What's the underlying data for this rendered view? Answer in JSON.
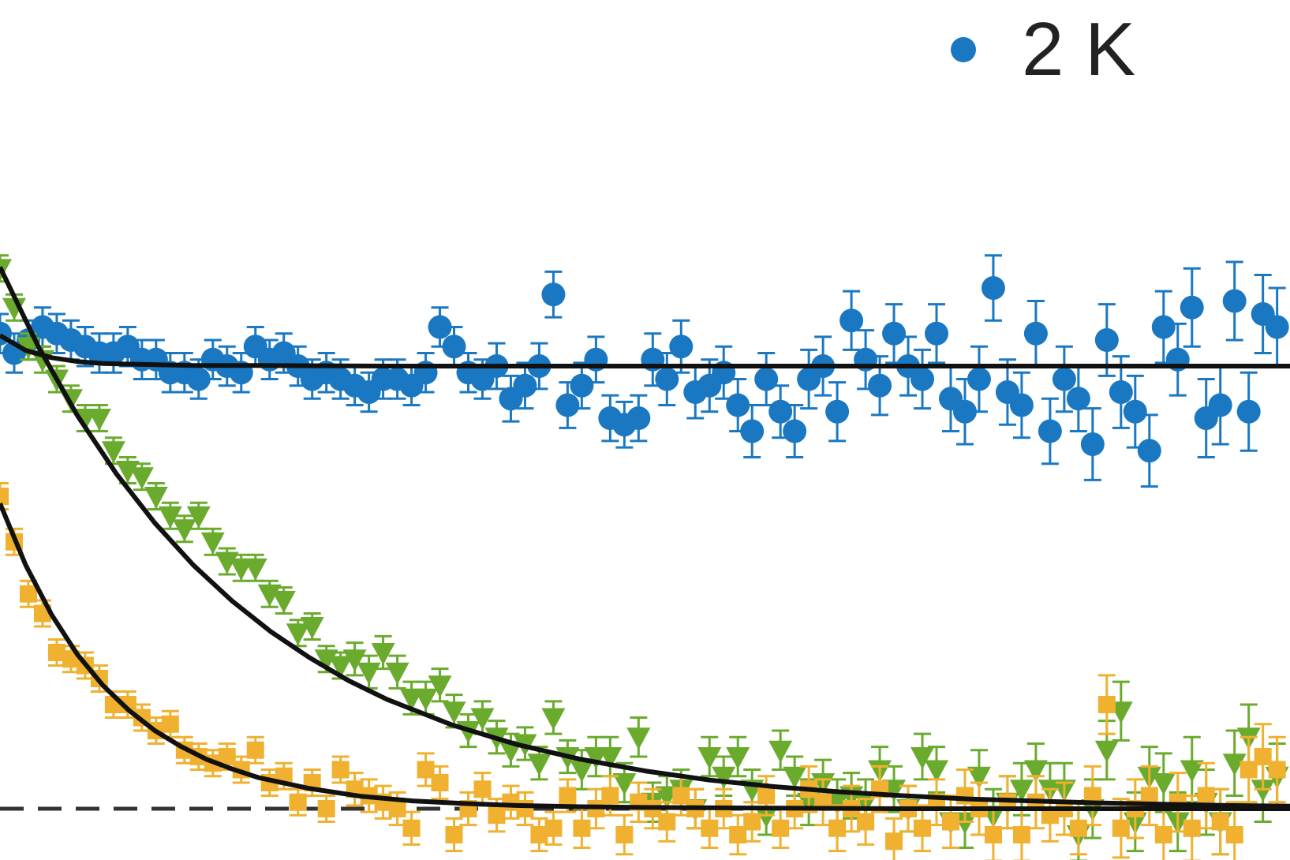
{
  "chart_data": {
    "type": "scatter",
    "title": "",
    "xlabel": "",
    "ylabel": "",
    "grid": false,
    "legend_position": "top-right",
    "xlim": [
      0,
      1
    ],
    "ylim": [
      0,
      1
    ],
    "baseline_dashed": 0,
    "series": [
      {
        "name": "2 K",
        "marker": "circle",
        "color": "#1a78c2",
        "x": [
          0.0,
          0.011,
          0.022,
          0.033,
          0.044,
          0.055,
          0.066,
          0.077,
          0.088,
          0.099,
          0.11,
          0.121,
          0.132,
          0.143,
          0.154,
          0.165,
          0.176,
          0.187,
          0.198,
          0.209,
          0.22,
          0.231,
          0.242,
          0.253,
          0.264,
          0.275,
          0.286,
          0.297,
          0.308,
          0.319,
          0.33,
          0.341,
          0.352,
          0.363,
          0.374,
          0.385,
          0.396,
          0.407,
          0.418,
          0.429,
          0.44,
          0.451,
          0.462,
          0.473,
          0.484,
          0.495,
          0.506,
          0.517,
          0.528,
          0.539,
          0.55,
          0.561,
          0.572,
          0.583,
          0.594,
          0.605,
          0.616,
          0.627,
          0.638,
          0.649,
          0.66,
          0.671,
          0.682,
          0.693,
          0.704,
          0.715,
          0.726,
          0.737,
          0.748,
          0.759,
          0.77,
          0.781,
          0.792,
          0.803,
          0.814,
          0.825,
          0.836,
          0.847,
          0.858,
          0.869,
          0.88,
          0.891,
          0.902,
          0.913,
          0.924,
          0.935,
          0.946,
          0.957,
          0.968,
          0.979,
          0.99
        ],
        "y": [
          0.73,
          0.7,
          0.72,
          0.74,
          0.73,
          0.72,
          0.71,
          0.7,
          0.7,
          0.71,
          0.69,
          0.69,
          0.67,
          0.67,
          0.66,
          0.69,
          0.68,
          0.67,
          0.71,
          0.69,
          0.7,
          0.68,
          0.66,
          0.67,
          0.66,
          0.65,
          0.64,
          0.66,
          0.66,
          0.65,
          0.67,
          0.74,
          0.71,
          0.67,
          0.66,
          0.68,
          0.63,
          0.65,
          0.68,
          0.79,
          0.62,
          0.65,
          0.69,
          0.6,
          0.59,
          0.6,
          0.69,
          0.66,
          0.71,
          0.64,
          0.65,
          0.67,
          0.62,
          0.58,
          0.66,
          0.61,
          0.58,
          0.66,
          0.68,
          0.61,
          0.75,
          0.69,
          0.65,
          0.73,
          0.68,
          0.66,
          0.73,
          0.63,
          0.61,
          0.66,
          0.8,
          0.64,
          0.62,
          0.73,
          0.58,
          0.66,
          0.63,
          0.56,
          0.72,
          0.64,
          0.61,
          0.55,
          0.74,
          0.69,
          0.77,
          0.6,
          0.62,
          0.78,
          0.61,
          0.76,
          0.74
        ],
        "yerr": [
          0.03,
          0.03,
          0.03,
          0.03,
          0.03,
          0.03,
          0.03,
          0.03,
          0.03,
          0.03,
          0.03,
          0.03,
          0.03,
          0.03,
          0.03,
          0.03,
          0.03,
          0.03,
          0.03,
          0.03,
          0.03,
          0.03,
          0.03,
          0.03,
          0.03,
          0.03,
          0.03,
          0.03,
          0.03,
          0.03,
          0.03,
          0.03,
          0.03,
          0.03,
          0.03,
          0.035,
          0.035,
          0.035,
          0.035,
          0.035,
          0.035,
          0.035,
          0.035,
          0.035,
          0.035,
          0.035,
          0.04,
          0.04,
          0.04,
          0.04,
          0.04,
          0.04,
          0.04,
          0.04,
          0.04,
          0.04,
          0.04,
          0.045,
          0.045,
          0.045,
          0.045,
          0.045,
          0.045,
          0.045,
          0.045,
          0.045,
          0.045,
          0.05,
          0.05,
          0.05,
          0.05,
          0.05,
          0.05,
          0.05,
          0.05,
          0.05,
          0.05,
          0.055,
          0.055,
          0.055,
          0.055,
          0.055,
          0.055,
          0.055,
          0.06,
          0.06,
          0.06,
          0.06,
          0.06,
          0.06,
          0.06
        ]
      },
      {
        "name": "",
        "marker": "triangle-down",
        "color": "#6aab2e",
        "x": [
          0.0,
          0.011,
          0.022,
          0.033,
          0.044,
          0.055,
          0.066,
          0.077,
          0.088,
          0.099,
          0.11,
          0.121,
          0.132,
          0.143,
          0.154,
          0.165,
          0.176,
          0.187,
          0.198,
          0.209,
          0.22,
          0.231,
          0.242,
          0.253,
          0.264,
          0.275,
          0.286,
          0.297,
          0.308,
          0.319,
          0.33,
          0.341,
          0.352,
          0.363,
          0.374,
          0.385,
          0.396,
          0.407,
          0.418,
          0.429,
          0.44,
          0.451,
          0.462,
          0.473,
          0.484,
          0.495,
          0.506,
          0.517,
          0.528,
          0.539,
          0.55,
          0.561,
          0.572,
          0.583,
          0.594,
          0.605,
          0.616,
          0.627,
          0.638,
          0.649,
          0.66,
          0.671,
          0.682,
          0.693,
          0.704,
          0.715,
          0.726,
          0.737,
          0.748,
          0.759,
          0.77,
          0.781,
          0.792,
          0.803,
          0.814,
          0.825,
          0.836,
          0.847,
          0.858,
          0.869,
          0.88,
          0.891,
          0.902,
          0.913,
          0.924,
          0.935,
          0.946,
          0.957,
          0.968,
          0.979,
          0.99
        ],
        "y": [
          0.83,
          0.77,
          0.71,
          0.69,
          0.66,
          0.63,
          0.6,
          0.6,
          0.55,
          0.52,
          0.51,
          0.48,
          0.45,
          0.43,
          0.45,
          0.41,
          0.38,
          0.37,
          0.37,
          0.33,
          0.32,
          0.27,
          0.28,
          0.23,
          0.22,
          0.23,
          0.21,
          0.24,
          0.21,
          0.17,
          0.17,
          0.19,
          0.15,
          0.12,
          0.14,
          0.11,
          0.09,
          0.1,
          0.07,
          0.14,
          0.08,
          0.06,
          0.08,
          0.08,
          0.04,
          0.11,
          0.01,
          0.02,
          0.03,
          0.0,
          0.08,
          0.05,
          0.08,
          0.03,
          -0.01,
          0.09,
          0.05,
          0.01,
          0.04,
          0.01,
          0.02,
          0.01,
          0.06,
          0.03,
          0.0,
          0.08,
          0.06,
          -0.02,
          -0.02,
          0.05,
          -0.01,
          0.01,
          0.03,
          0.06,
          0.03,
          0.03,
          -0.04,
          0.0,
          0.09,
          0.15,
          -0.02,
          0.05,
          0.04,
          -0.02,
          0.06,
          0.01,
          -0.02,
          0.07,
          0.11,
          0.03,
          0.05
        ],
        "yerr": [
          0.02,
          0.02,
          0.02,
          0.02,
          0.02,
          0.02,
          0.02,
          0.02,
          0.02,
          0.02,
          0.02,
          0.02,
          0.02,
          0.02,
          0.02,
          0.02,
          0.02,
          0.02,
          0.02,
          0.02,
          0.02,
          0.02,
          0.02,
          0.02,
          0.02,
          0.025,
          0.025,
          0.025,
          0.025,
          0.025,
          0.025,
          0.025,
          0.025,
          0.025,
          0.025,
          0.025,
          0.025,
          0.025,
          0.025,
          0.025,
          0.025,
          0.03,
          0.03,
          0.03,
          0.03,
          0.03,
          0.03,
          0.03,
          0.03,
          0.03,
          0.03,
          0.03,
          0.03,
          0.03,
          0.03,
          0.03,
          0.03,
          0.035,
          0.035,
          0.035,
          0.035,
          0.035,
          0.035,
          0.035,
          0.035,
          0.035,
          0.035,
          0.04,
          0.04,
          0.04,
          0.04,
          0.04,
          0.04,
          0.04,
          0.04,
          0.04,
          0.04,
          0.045,
          0.045,
          0.045,
          0.045,
          0.045,
          0.045,
          0.045,
          0.05,
          0.05,
          0.05,
          0.05,
          0.05,
          0.05,
          0.05
        ]
      },
      {
        "name": "",
        "marker": "square",
        "color": "#efb12f",
        "x": [
          0.0,
          0.011,
          0.022,
          0.033,
          0.044,
          0.055,
          0.066,
          0.077,
          0.088,
          0.099,
          0.11,
          0.121,
          0.132,
          0.143,
          0.154,
          0.165,
          0.176,
          0.187,
          0.198,
          0.209,
          0.22,
          0.231,
          0.242,
          0.253,
          0.264,
          0.275,
          0.286,
          0.297,
          0.308,
          0.319,
          0.33,
          0.341,
          0.352,
          0.363,
          0.374,
          0.385,
          0.396,
          0.407,
          0.418,
          0.429,
          0.44,
          0.451,
          0.462,
          0.473,
          0.484,
          0.495,
          0.506,
          0.517,
          0.528,
          0.539,
          0.55,
          0.561,
          0.572,
          0.583,
          0.594,
          0.605,
          0.616,
          0.627,
          0.638,
          0.649,
          0.66,
          0.671,
          0.682,
          0.693,
          0.704,
          0.715,
          0.726,
          0.737,
          0.748,
          0.759,
          0.77,
          0.781,
          0.792,
          0.803,
          0.814,
          0.825,
          0.836,
          0.847,
          0.858,
          0.869,
          0.88,
          0.891,
          0.902,
          0.913,
          0.924,
          0.935,
          0.946,
          0.957,
          0.968,
          0.979,
          0.99
        ],
        "y": [
          0.48,
          0.41,
          0.33,
          0.3,
          0.24,
          0.23,
          0.22,
          0.2,
          0.16,
          0.16,
          0.14,
          0.12,
          0.13,
          0.09,
          0.08,
          0.07,
          0.08,
          0.06,
          0.09,
          0.04,
          0.05,
          0.01,
          0.04,
          0.0,
          0.06,
          0.03,
          0.02,
          0.01,
          0.0,
          -0.03,
          0.06,
          0.04,
          -0.04,
          0.0,
          0.03,
          -0.01,
          0.01,
          0.0,
          -0.04,
          -0.03,
          0.02,
          -0.03,
          0.0,
          0.02,
          -0.04,
          0.01,
          0.0,
          -0.02,
          0.02,
          0.0,
          -0.03,
          0.0,
          -0.04,
          -0.02,
          0.02,
          -0.03,
          0.0,
          0.03,
          0.01,
          -0.03,
          0.0,
          -0.02,
          0.03,
          -0.05,
          0.0,
          -0.03,
          0.01,
          -0.02,
          0.02,
          0.0,
          -0.04,
          0.01,
          -0.04,
          0.01,
          -0.01,
          0.0,
          -0.03,
          0.02,
          0.16,
          -0.03,
          0.0,
          0.02,
          -0.04,
          0.01,
          -0.03,
          0.02,
          -0.02,
          -0.04,
          0.06,
          0.08,
          0.06
        ],
        "yerr": [
          0.02,
          0.02,
          0.02,
          0.02,
          0.02,
          0.02,
          0.02,
          0.02,
          0.02,
          0.02,
          0.02,
          0.02,
          0.02,
          0.02,
          0.02,
          0.02,
          0.02,
          0.02,
          0.02,
          0.02,
          0.02,
          0.02,
          0.02,
          0.02,
          0.02,
          0.025,
          0.025,
          0.025,
          0.025,
          0.025,
          0.025,
          0.025,
          0.025,
          0.025,
          0.025,
          0.025,
          0.025,
          0.025,
          0.025,
          0.025,
          0.025,
          0.03,
          0.03,
          0.03,
          0.03,
          0.03,
          0.03,
          0.03,
          0.03,
          0.03,
          0.03,
          0.03,
          0.03,
          0.03,
          0.03,
          0.03,
          0.03,
          0.035,
          0.035,
          0.035,
          0.035,
          0.035,
          0.035,
          0.035,
          0.035,
          0.035,
          0.035,
          0.04,
          0.04,
          0.04,
          0.04,
          0.04,
          0.04,
          0.04,
          0.04,
          0.04,
          0.04,
          0.045,
          0.045,
          0.045,
          0.045,
          0.045,
          0.045,
          0.045,
          0.05,
          0.05,
          0.05,
          0.05,
          0.05,
          0.05,
          0.05
        ]
      }
    ],
    "fits": [
      {
        "series": 0,
        "x": [
          0.0,
          0.02,
          0.04,
          0.06,
          0.08,
          0.1,
          0.15,
          0.2,
          0.3,
          0.4,
          0.5,
          0.6,
          0.7,
          0.8,
          0.9,
          1.0
        ],
        "y": [
          0.727,
          0.704,
          0.693,
          0.687,
          0.684,
          0.683,
          0.681,
          0.681,
          0.68,
          0.68,
          0.68,
          0.68,
          0.68,
          0.68,
          0.68,
          0.68
        ]
      },
      {
        "series": 1,
        "x": [
          0.0,
          0.03,
          0.06,
          0.09,
          0.12,
          0.15,
          0.18,
          0.21,
          0.24,
          0.27,
          0.3,
          0.35,
          0.4,
          0.45,
          0.5,
          0.55,
          0.6,
          0.65,
          0.7,
          0.75,
          0.8,
          0.85,
          0.9,
          0.95,
          1.0
        ],
        "y": [
          0.832,
          0.709,
          0.604,
          0.515,
          0.439,
          0.374,
          0.319,
          0.272,
          0.232,
          0.197,
          0.168,
          0.129,
          0.099,
          0.076,
          0.058,
          0.044,
          0.034,
          0.026,
          0.02,
          0.015,
          0.012,
          0.009,
          0.007,
          0.005,
          0.004
        ]
      },
      {
        "series": 2,
        "x": [
          0.0,
          0.02,
          0.04,
          0.06,
          0.08,
          0.1,
          0.12,
          0.14,
          0.16,
          0.18,
          0.2,
          0.24,
          0.28,
          0.32,
          0.36,
          0.4,
          0.45,
          0.5,
          0.6,
          0.7,
          0.8,
          0.9,
          1.0
        ],
        "y": [
          0.469,
          0.374,
          0.298,
          0.237,
          0.189,
          0.151,
          0.12,
          0.096,
          0.076,
          0.061,
          0.048,
          0.031,
          0.019,
          0.012,
          0.008,
          0.005,
          0.003,
          0.002,
          0.001,
          0.0,
          0.0,
          0.0,
          0.0
        ]
      }
    ]
  }
}
